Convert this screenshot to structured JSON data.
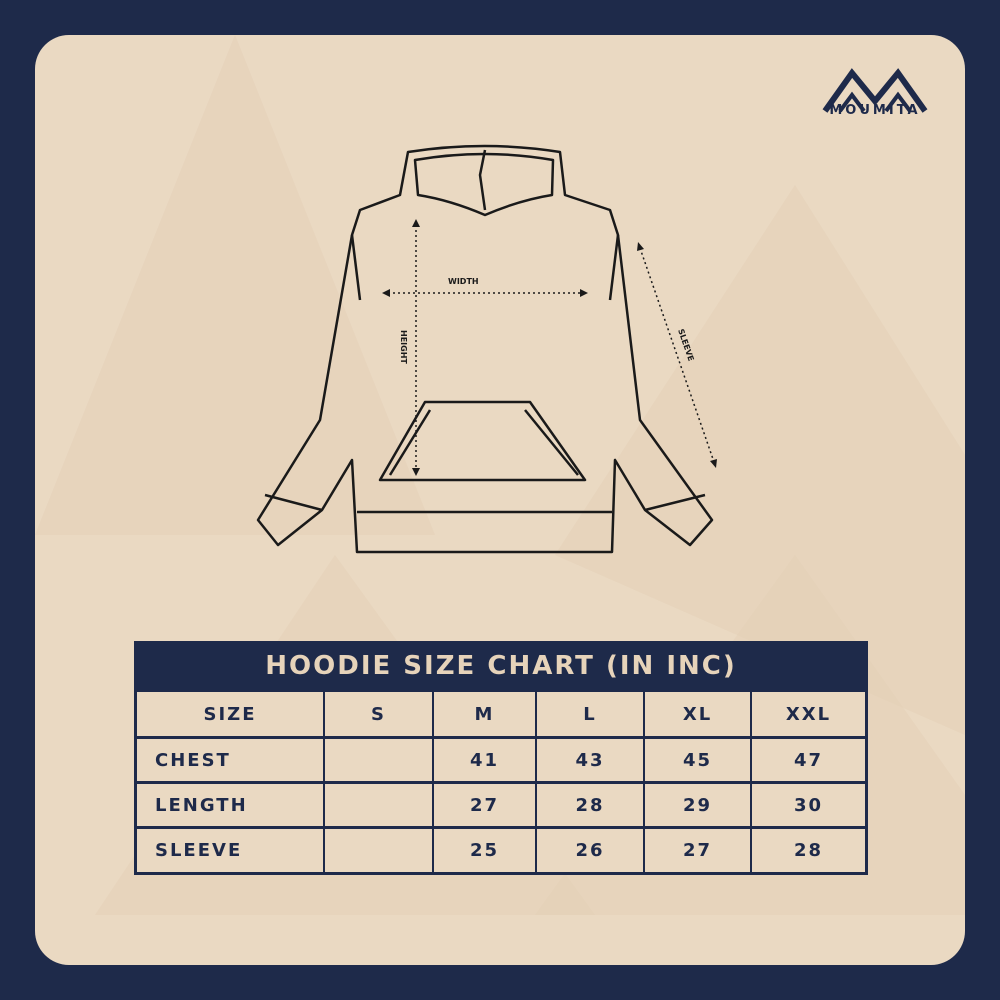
{
  "brand": {
    "name": "MOUMITA",
    "logo_icon": "mountain-m-logo"
  },
  "diagram": {
    "width_label": "WIDTH",
    "height_label": "HEIGHT",
    "sleeve_label": "SLEEVE"
  },
  "size_chart": {
    "title": "HOODIE SIZE CHART (IN INC)",
    "header": [
      "SIZE",
      "S",
      "M",
      "L",
      "XL",
      "XXL"
    ],
    "rows": [
      {
        "label": "CHEST",
        "values": [
          "",
          "41",
          "43",
          "45",
          "47"
        ]
      },
      {
        "label": "LENGTH",
        "values": [
          "",
          "27",
          "28",
          "29",
          "30"
        ]
      },
      {
        "label": "SLEEVE",
        "values": [
          "",
          "25",
          "26",
          "27",
          "28"
        ]
      }
    ]
  },
  "colors": {
    "navy": "#1e2a4a",
    "beige": "#ead9c2"
  }
}
